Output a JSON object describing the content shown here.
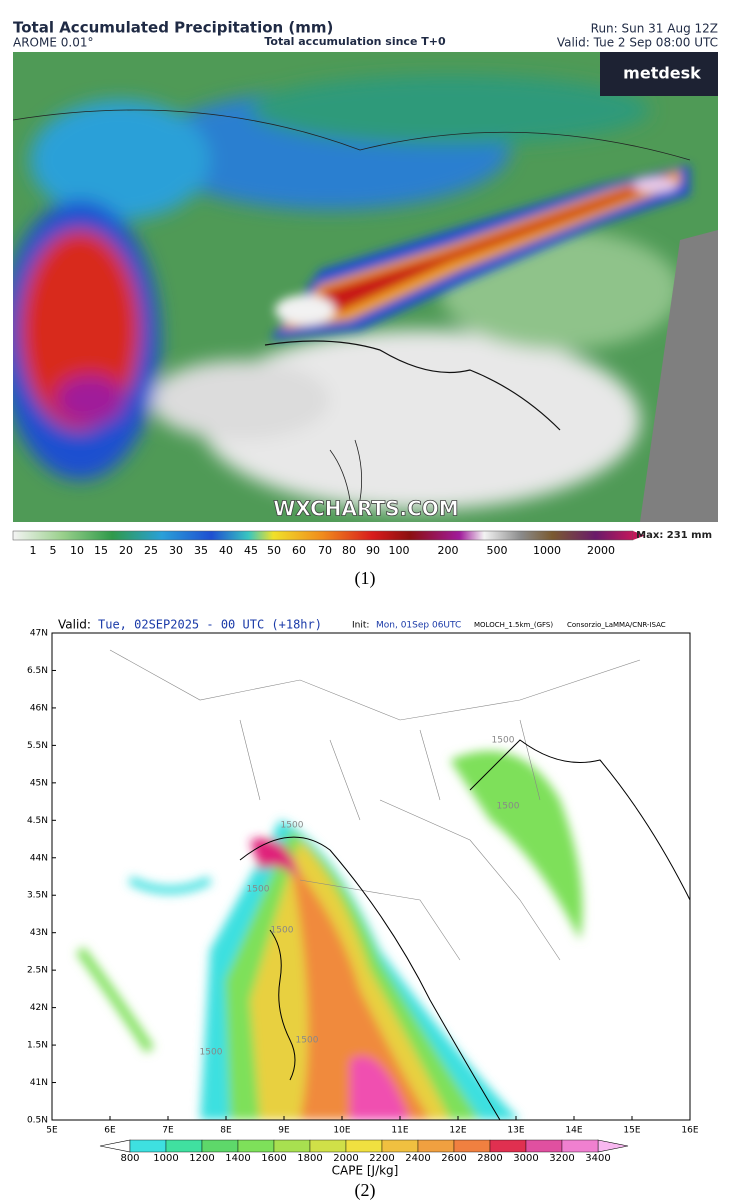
{
  "panel1": {
    "title": "Total Accumulated Precipitation (mm)",
    "model": "AROME 0.01°",
    "subtitle": "Total accumulation since T+0",
    "run": "Run: Sun 31 Aug 12Z",
    "valid": "Valid: Tue 2 Sep 08:00 UTC",
    "brand": "metdesk",
    "watermark": "WXCHARTS.COM",
    "max": "Max: 231 mm",
    "colorbar_labels": [
      1,
      5,
      10,
      15,
      20,
      25,
      30,
      35,
      40,
      45,
      50,
      60,
      70,
      80,
      90,
      100,
      200,
      500,
      1000,
      2000
    ],
    "caption": "(1)"
  },
  "panel2": {
    "valid_label": "Valid:",
    "valid": "Tue, 02SEP2025 - 00 UTC (+18hr)",
    "init_label": "Init:",
    "init": "Mon, 01Sep 06UTC",
    "model": "MOLOCH_1.5km_(GFS)",
    "source": "Consorzio_LaMMA/CNR-ISAC",
    "y_labels": [
      "47N",
      "6.5N",
      "46N",
      "5.5N",
      "45N",
      "4.5N",
      "44N",
      "3.5N",
      "43N",
      "2.5N",
      "42N",
      "1.5N",
      "41N",
      "0.5N"
    ],
    "x_labels": [
      "5E",
      "6E",
      "7E",
      "8E",
      "9E",
      "10E",
      "11E",
      "12E",
      "13E",
      "14E",
      "15E",
      "16E"
    ],
    "contour_labels": [
      "1500",
      "1500",
      "1500",
      "1500",
      "1500",
      "1500",
      "1500"
    ],
    "colorbar_labels": [
      800,
      1000,
      1200,
      1400,
      1600,
      1800,
      2000,
      2200,
      2400,
      2600,
      2800,
      3000,
      3200,
      3400
    ],
    "colorbar_title": "CAPE [J/kg]",
    "caption": "(2)"
  }
}
